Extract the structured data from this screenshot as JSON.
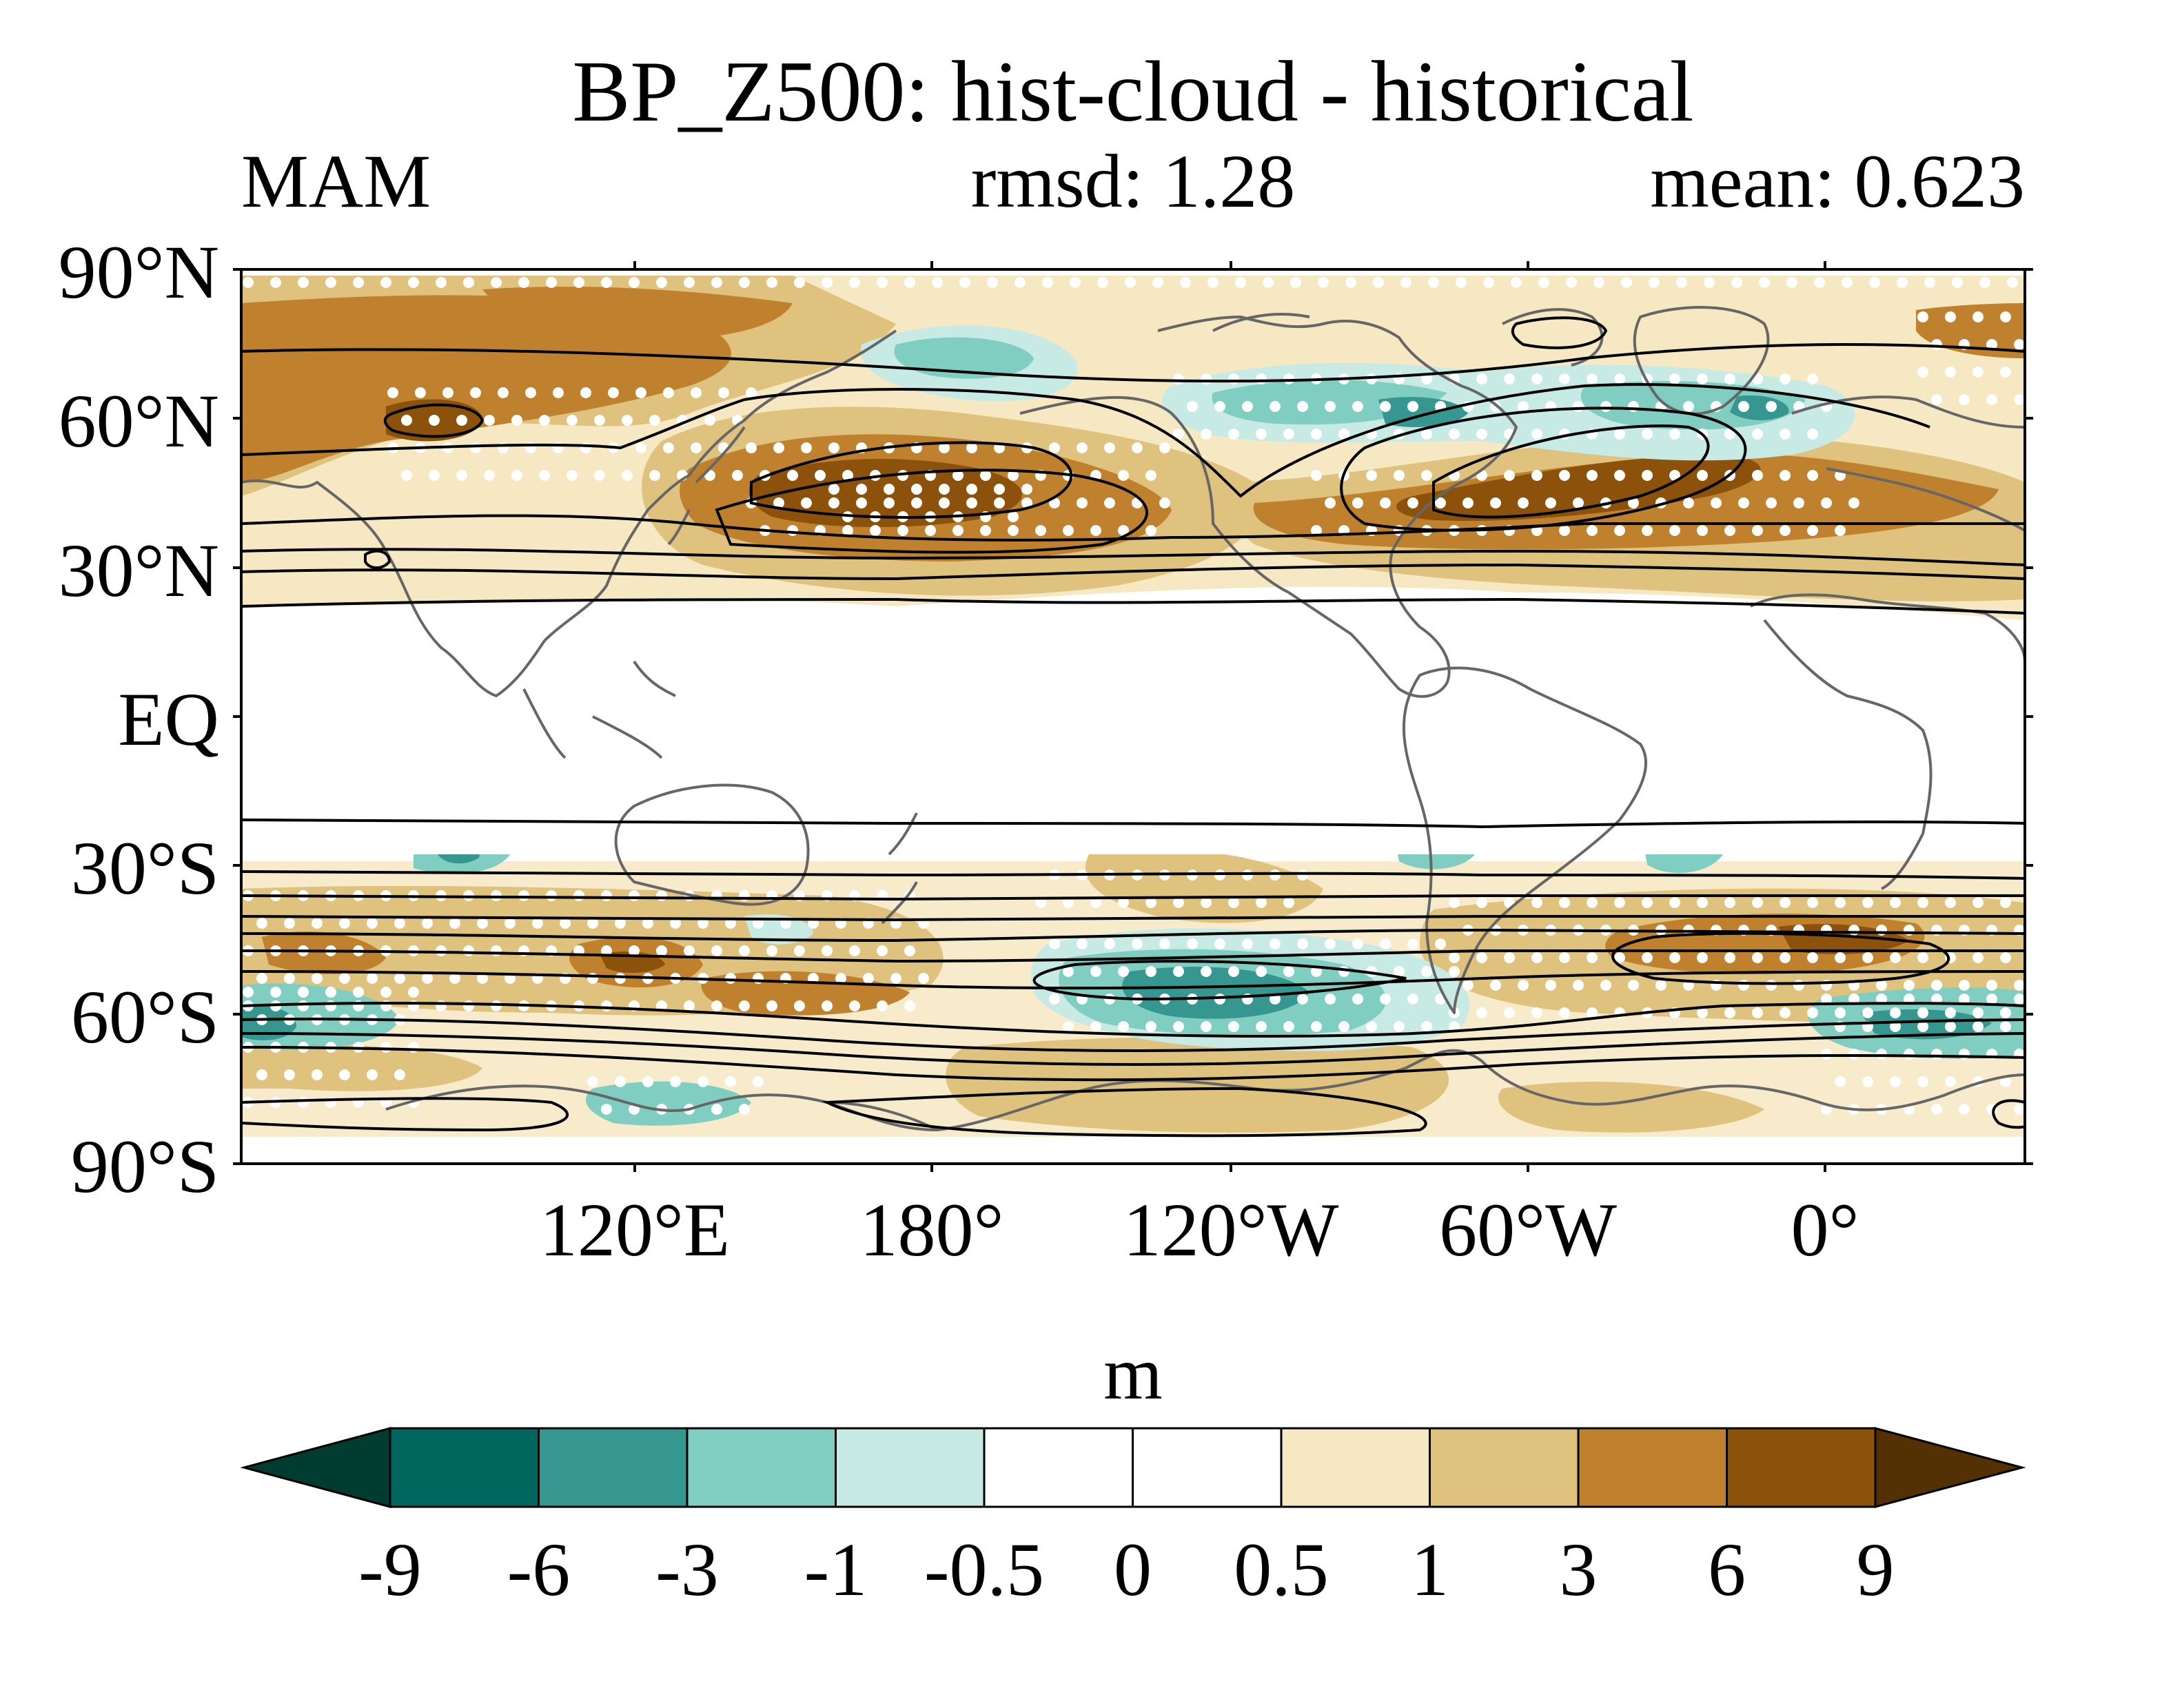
{
  "figure": {
    "title": "BP_Z500: hist-cloud - historical",
    "season": "MAM",
    "rmsd_label": "rmsd: 1.28",
    "mean_label": "mean: 0.623"
  },
  "map": {
    "projection": "cylindrical equidistant",
    "central_longitude": 150,
    "lat_ticks": [
      "90°N",
      "60°N",
      "30°N",
      "EQ",
      "30°S",
      "60°S",
      "90°S"
    ],
    "lon_ticks": [
      "120°E",
      "180°",
      "120°W",
      "60°W",
      "0°"
    ],
    "shading_variable": "Z500 band-pass difference (hist-cloud - historical)",
    "contours": "historical climatology",
    "stippling": "significant differences"
  },
  "colorbar": {
    "unit_label": "m",
    "levels": [
      "-9",
      "-6",
      "-3",
      "-1",
      "-0.5",
      "0",
      "0.5",
      "1",
      "3",
      "6",
      "9"
    ],
    "colors": [
      "#003c30",
      "#01665e",
      "#35978f",
      "#80cdc1",
      "#c7eae5",
      "#ffffff",
      "#ffffff",
      "#f6e8c3",
      "#dfc27d",
      "#bf812d",
      "#8c510a",
      "#543005"
    ]
  }
}
